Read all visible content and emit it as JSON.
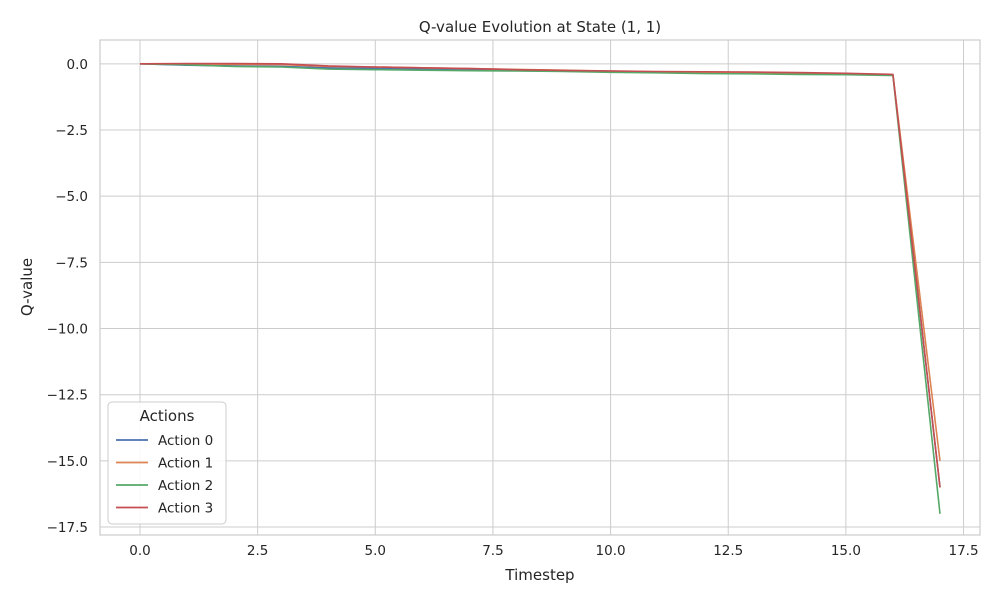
{
  "chart_data": {
    "type": "line",
    "title": "Q-value Evolution at State (1, 1)",
    "xlabel": "Timestep",
    "ylabel": "Q-value",
    "xlim": [
      -0.85,
      17.85
    ],
    "ylim": [
      -17.8,
      0.9
    ],
    "xticks": [
      0,
      2.5,
      5,
      7.5,
      10,
      12.5,
      15,
      17.5
    ],
    "xtick_labels": [
      "0.0",
      "2.5",
      "5.0",
      "7.5",
      "10.0",
      "12.5",
      "15.0",
      "17.5"
    ],
    "yticks": [
      0,
      -2.5,
      -5,
      -7.5,
      -10,
      -12.5,
      -15,
      -17.5
    ],
    "ytick_labels": [
      "0.0",
      "−2.5",
      "−5.0",
      "−7.5",
      "−10.0",
      "−12.5",
      "−15.0",
      "−17.5"
    ],
    "grid": true,
    "legend": {
      "title": "Actions",
      "placement": "lower-left"
    },
    "x": [
      0,
      1,
      2,
      3,
      4,
      5,
      6,
      7,
      8,
      9,
      10,
      11,
      12,
      13,
      14,
      15,
      16,
      17
    ],
    "series": [
      {
        "name": "Action 0",
        "color": "#4c72b0",
        "values": [
          0,
          -0.05,
          -0.08,
          -0.1,
          -0.15,
          -0.17,
          -0.2,
          -0.23,
          -0.26,
          -0.28,
          -0.3,
          -0.32,
          -0.34,
          -0.36,
          -0.38,
          -0.4,
          -0.42,
          -16.0
        ]
      },
      {
        "name": "Action 1",
        "color": "#dd8452",
        "values": [
          0,
          0.0,
          -0.02,
          -0.03,
          -0.1,
          -0.12,
          -0.15,
          -0.18,
          -0.21,
          -0.24,
          -0.28,
          -0.31,
          -0.34,
          -0.35,
          -0.36,
          -0.38,
          -0.42,
          -15.0
        ]
      },
      {
        "name": "Action 2",
        "color": "#55a868",
        "values": [
          0,
          -0.04,
          -0.1,
          -0.12,
          -0.2,
          -0.22,
          -0.24,
          -0.26,
          -0.27,
          -0.29,
          -0.32,
          -0.34,
          -0.37,
          -0.38,
          -0.4,
          -0.41,
          -0.44,
          -17.0
        ]
      },
      {
        "name": "Action 3",
        "color": "#c44e52",
        "values": [
          0,
          0.01,
          0.01,
          0.0,
          -0.08,
          -0.12,
          -0.15,
          -0.18,
          -0.22,
          -0.25,
          -0.27,
          -0.29,
          -0.3,
          -0.31,
          -0.33,
          -0.36,
          -0.4,
          -16.0
        ]
      }
    ]
  }
}
